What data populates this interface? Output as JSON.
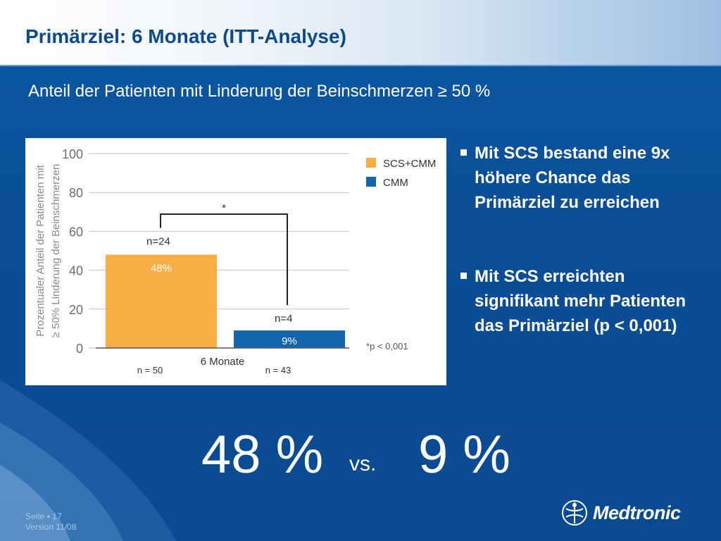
{
  "slide": {
    "title": "Primärziel: 6 Monate (ITT-Analyse)",
    "subtitle": "Anteil der Patienten mit Linderung der Beinschmerzen ≥ 50 %",
    "bullets": [
      "Mit SCS bestand eine 9x höhere Chance das Primärziel zu erreichen",
      "Mit SCS erreichten signifikant mehr Patienten das Primärziel (p < 0,001)"
    ],
    "big_left": "48 %",
    "big_vs": "vs.",
    "big_right": "9 %",
    "footer_page": "Seite ▪ 17",
    "footer_version": "Version 11/08",
    "logo_text": "Medtronic"
  },
  "colors": {
    "scs_cmm": "#f7ae45",
    "cmm": "#1464b0",
    "text_on_bg": "#ffffff",
    "title": "#0d4a8b"
  },
  "chart_data": {
    "type": "bar",
    "ylabel": "Prozentualer Anteil der Patienten mit ≥ 50% Linderung der Beinschmerzen",
    "ylim": [
      0,
      100
    ],
    "yticks": [
      0,
      20,
      40,
      60,
      80,
      100
    ],
    "categories": [
      "6 Monate"
    ],
    "series": [
      {
        "name": "SCS+CMM",
        "values": [
          48
        ],
        "bar_label": "48%",
        "count_label": "n=24",
        "n_label": "n = 50"
      },
      {
        "name": "CMM",
        "values": [
          9
        ],
        "bar_label": "9%",
        "count_label": "n=4",
        "n_label": "n = 43"
      }
    ],
    "significance_marker": "*",
    "footnote": "*p < 0,001",
    "legend_position": "top-right",
    "grid": true
  }
}
